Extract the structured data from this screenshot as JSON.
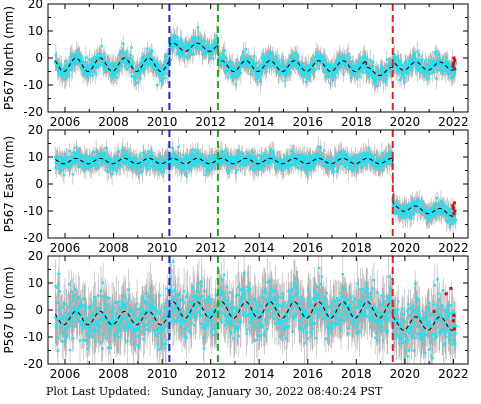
{
  "colors": {
    "error_bar": "#b0b0b0",
    "data": "#22e0f0",
    "model": "#000000",
    "recent": "#d01010",
    "offset_antenna": "#2222cc",
    "offset_earthquake": "#20aa20",
    "offset_other": "#dd2020"
  },
  "chart_data": [
    {
      "type": "scatter",
      "ylabel": "P567 North (mm)",
      "xlim": [
        2005.3,
        2022.6
      ],
      "ylim": [
        -20,
        20
      ],
      "xticks": [
        2006,
        2008,
        2010,
        2012,
        2014,
        2016,
        2018,
        2020,
        2022
      ],
      "yticks": [
        -20,
        -10,
        0,
        10,
        20
      ],
      "grid": false,
      "offsets": [
        {
          "x": 2010.3,
          "color": "blue"
        },
        {
          "x": 2012.3,
          "color": "green"
        },
        {
          "x": 2019.5,
          "color": "red"
        }
      ],
      "model_segments": [
        {
          "start": 2005.6,
          "end": 2010.3,
          "level": -2.5,
          "amp": 2.5
        },
        {
          "start": 2010.3,
          "end": 2012.3,
          "level": 4.0,
          "amp": 1.5
        },
        {
          "start": 2012.3,
          "end": 2018.4,
          "level": -3.0,
          "amp": 2.0
        },
        {
          "start": 2018.4,
          "end": 2019.5,
          "level": -5.0,
          "amp": 1.5
        },
        {
          "start": 2019.5,
          "end": 2022.1,
          "level": -3.0,
          "amp": 1.5
        }
      ],
      "scatter_sd": 1.8,
      "error_bar": 3.0,
      "recent_points": [
        {
          "x": 2022.0,
          "y": -2.0
        },
        {
          "x": 2022.02,
          "y": 0.0
        },
        {
          "x": 2022.04,
          "y": -4.0
        },
        {
          "x": 2022.06,
          "y": -1.0
        },
        {
          "x": 2021.98,
          "y": -3.0
        }
      ]
    },
    {
      "type": "scatter",
      "ylabel": "P567 East (mm)",
      "xlim": [
        2005.3,
        2022.6
      ],
      "ylim": [
        -20,
        20
      ],
      "xticks": [
        2006,
        2008,
        2010,
        2012,
        2014,
        2016,
        2018,
        2020,
        2022
      ],
      "yticks": [
        -20,
        -10,
        0,
        10,
        20
      ],
      "grid": false,
      "offsets": [
        {
          "x": 2010.3,
          "color": "blue"
        },
        {
          "x": 2012.3,
          "color": "green"
        },
        {
          "x": 2019.5,
          "color": "red"
        }
      ],
      "model_segments": [
        {
          "start": 2005.6,
          "end": 2019.5,
          "level": 8.5,
          "amp": 1.0
        },
        {
          "start": 2019.5,
          "end": 2022.1,
          "level": -8.5,
          "amp": 1.2,
          "slope": -0.9
        }
      ],
      "scatter_sd": 1.5,
      "error_bar": 3.0,
      "recent_points": [
        {
          "x": 2022.0,
          "y": -9.0
        },
        {
          "x": 2022.02,
          "y": -11.0
        },
        {
          "x": 2022.04,
          "y": -7.0
        },
        {
          "x": 2022.06,
          "y": -10.0
        },
        {
          "x": 2021.98,
          "y": -8.0
        }
      ]
    },
    {
      "type": "scatter",
      "ylabel": "P567 Up (mm)",
      "xlim": [
        2005.3,
        2022.6
      ],
      "ylim": [
        -20,
        20
      ],
      "xticks": [
        2006,
        2008,
        2010,
        2012,
        2014,
        2016,
        2018,
        2020,
        2022
      ],
      "yticks": [
        -20,
        -10,
        0,
        10,
        20
      ],
      "grid": false,
      "offsets": [
        {
          "x": 2010.3,
          "color": "blue"
        },
        {
          "x": 2012.3,
          "color": "green"
        },
        {
          "x": 2019.5,
          "color": "red"
        }
      ],
      "model_segments": [
        {
          "start": 2005.6,
          "end": 2010.3,
          "level": -3.0,
          "amp": 2.5
        },
        {
          "start": 2010.3,
          "end": 2019.5,
          "level": 0.0,
          "amp": 3.0
        },
        {
          "start": 2019.5,
          "end": 2022.1,
          "level": -5.0,
          "amp": 2.5
        }
      ],
      "scatter_sd": 4.5,
      "error_bar": 7.0,
      "recent_points": [
        {
          "x": 2021.7,
          "y": 6.0
        },
        {
          "x": 2021.9,
          "y": 8.0
        },
        {
          "x": 2022.0,
          "y": -4.0
        },
        {
          "x": 2022.02,
          "y": -2.0
        },
        {
          "x": 2022.04,
          "y": -7.0
        },
        {
          "x": 2021.2,
          "y": -0.5
        }
      ]
    }
  ],
  "footer": {
    "label": "Plot Last Updated:",
    "timestamp": "Sunday, January 30, 2022 08:40:24 PST"
  }
}
